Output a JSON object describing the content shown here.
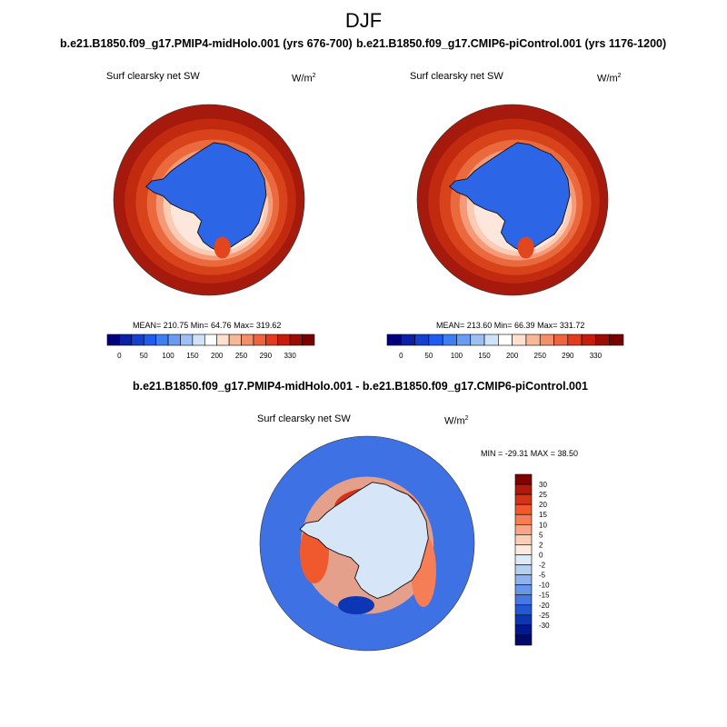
{
  "title": "DJF",
  "panels": [
    {
      "case": "b.e21.B1850.f09_g17.PMIP4-midHolo.001 (yrs 676-700)",
      "variable": "Surf clearsky net SW",
      "units_base": "W/m",
      "units_exp": "2",
      "stats": "MEAN= 210.75  Min=  64.76  Max= 319.62"
    },
    {
      "case": "b.e21.B1850.f09_g17.CMIP6-piControl.001 (yrs 1176-1200)",
      "variable": "Surf clearsky net SW",
      "units_base": "W/m",
      "units_exp": "2",
      "stats": "MEAN= 213.60  Min=  66.39  Max= 331.72"
    }
  ],
  "diff": {
    "case": "b.e21.B1850.f09_g17.PMIP4-midHolo.001 - b.e21.B1850.f09_g17.CMIP6-piControl.001",
    "variable": "Surf clearsky net SW",
    "units_base": "W/m",
    "units_exp": "2",
    "minmax": "MIN = -29.31 MAX =  38.50"
  },
  "abs_colorbar": {
    "colors": [
      "#00007f",
      "#0c1fa6",
      "#1540cc",
      "#1f5bee",
      "#3e7df2",
      "#6a9bf0",
      "#9dbff2",
      "#cfe2f7",
      "#ffffff",
      "#fde0cf",
      "#f9b799",
      "#f48d6a",
      "#ee6340",
      "#e23a1c",
      "#c41d0c",
      "#9c0c05",
      "#7a0000"
    ],
    "labels": [
      "0",
      "50",
      "100",
      "150",
      "200",
      "250",
      "290",
      "330"
    ]
  },
  "diff_colorbar": {
    "colors": [
      "#800000",
      "#b0180a",
      "#d63416",
      "#f0592d",
      "#f57e56",
      "#f7a582",
      "#fbcdb6",
      "#fde9dd",
      "#dce9f8",
      "#b5cff2",
      "#8fb2ee",
      "#6a94ea",
      "#4677e6",
      "#2457d6",
      "#0c36b4",
      "#001890",
      "#000a6c"
    ],
    "labels": [
      "30",
      "25",
      "20",
      "15",
      "10",
      "5",
      "2",
      "0",
      "-2",
      "-5",
      "-10",
      "-15",
      "-20",
      "-25",
      "-30"
    ]
  },
  "map_colors": {
    "ocean_abs": [
      "#a51a0c",
      "#c22a10",
      "#d9431c",
      "#ea6a3e",
      "#f59a78",
      "#fbcbb3",
      "#fde6dc"
    ],
    "ice_abs": "#2c66e6",
    "ocean_diff": "#3d71e4",
    "land_diff": "#d6e6f8"
  }
}
